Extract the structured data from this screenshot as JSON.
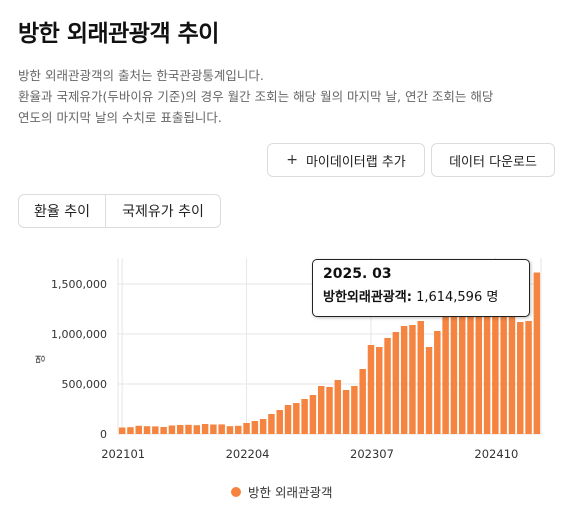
{
  "page": {
    "title": "방한 외래관광객 추이",
    "desc_line1": "방한 외래관광객의 출처는 한국관광통계입니다.",
    "desc_line2": "환율과 국제유가(두바이유 기준)의 경우 월간 조회는 해당 월의 마지막 날, 연간 조회는 해당",
    "desc_line3": "연도의 마지막 날의 수치로 표출됩니다."
  },
  "buttons": {
    "add_label": "마이데이터랩 추가",
    "add_icon": "plus-icon",
    "download_label": "데이터 다운로드"
  },
  "tabs": [
    {
      "label": "환율 추이"
    },
    {
      "label": "국제유가 추이"
    }
  ],
  "tooltip": {
    "date": "2025. 03",
    "series_label": "방한외래관광객:",
    "value": "1,614,596 명"
  },
  "legend": {
    "label": "방한 외래관광객"
  },
  "colors": {
    "bar": "#f4843f",
    "grid": "#e6e6e6"
  },
  "chart_data": {
    "type": "bar",
    "ylabel": "명",
    "ylim": [
      0,
      1750000
    ],
    "yticks": [
      "0",
      "500,000",
      "1,000,000",
      "1,500,000"
    ],
    "ytick_values": [
      0,
      500000,
      1000000,
      1500000
    ],
    "xtick_labels": [
      "202101",
      "202204",
      "202307",
      "202410"
    ],
    "xtick_categories": [
      "202101",
      "202204",
      "202307",
      "202410"
    ],
    "categories": [
      "202101",
      "202102",
      "202103",
      "202104",
      "202105",
      "202106",
      "202107",
      "202108",
      "202109",
      "202110",
      "202111",
      "202112",
      "202201",
      "202202",
      "202203",
      "202204",
      "202205",
      "202206",
      "202207",
      "202208",
      "202209",
      "202210",
      "202211",
      "202212",
      "202301",
      "202302",
      "202303",
      "202304",
      "202305",
      "202306",
      "202307",
      "202308",
      "202309",
      "202310",
      "202311",
      "202312",
      "202401",
      "202402",
      "202403",
      "202404",
      "202405",
      "202406",
      "202407",
      "202408",
      "202409",
      "202410",
      "202411",
      "202412",
      "202501",
      "202502",
      "202503"
    ],
    "series": [
      {
        "name": "방한 외래관광객",
        "values": [
          65000,
          68000,
          82000,
          78000,
          76000,
          70000,
          85000,
          90000,
          92000,
          88000,
          100000,
          95000,
          96000,
          78000,
          82000,
          110000,
          130000,
          150000,
          200000,
          240000,
          290000,
          310000,
          350000,
          390000,
          480000,
          470000,
          540000,
          440000,
          480000,
          650000,
          890000,
          870000,
          960000,
          1020000,
          1080000,
          1090000,
          1130000,
          870000,
          1030000,
          1370000,
          1450000,
          1480000,
          1500000,
          1560000,
          1480000,
          1560000,
          1600000,
          1480000,
          1120000,
          1130000,
          1614596
        ]
      }
    ]
  }
}
